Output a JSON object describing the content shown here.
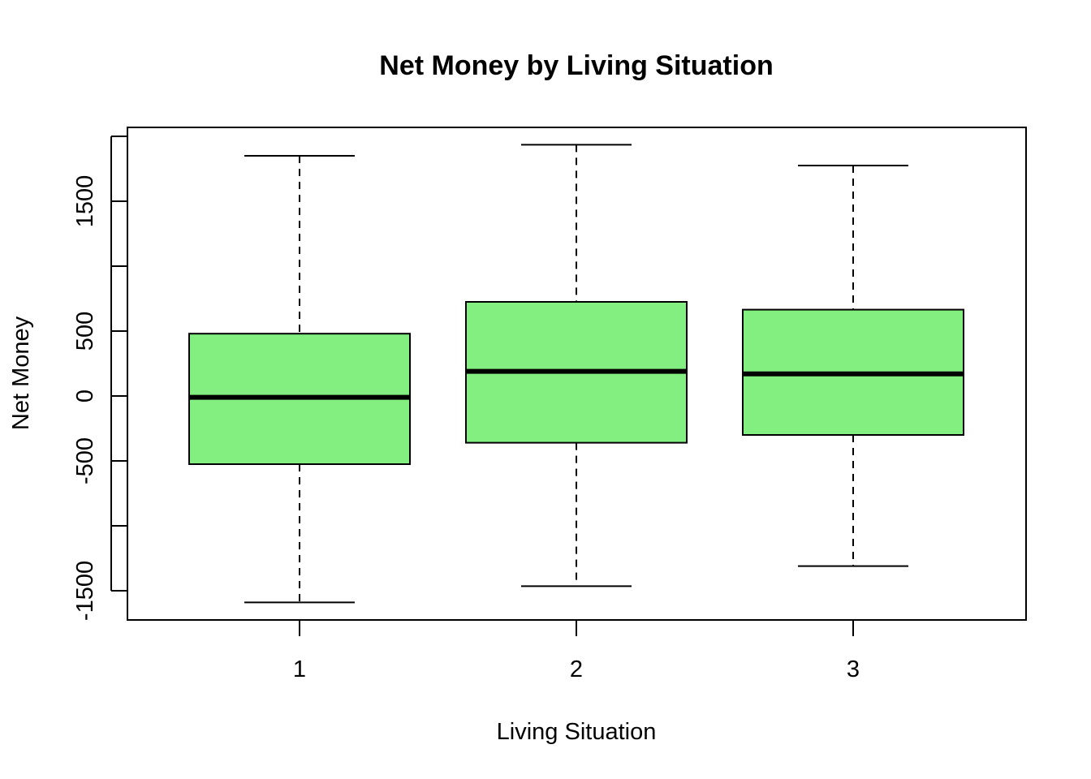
{
  "chart_data": {
    "type": "boxplot",
    "title": "Net Money by Living Situation",
    "xlabel": "Living Situation",
    "ylabel": "Net Money",
    "categories": [
      "1",
      "2",
      "3"
    ],
    "boxes": [
      {
        "category": "1",
        "whisker_low": -1590,
        "q1": -525,
        "median": -10,
        "q3": 480,
        "whisker_high": 1850
      },
      {
        "category": "2",
        "whisker_low": -1465,
        "q1": -360,
        "median": 190,
        "q3": 725,
        "whisker_high": 1935
      },
      {
        "category": "3",
        "whisker_low": -1310,
        "q1": -300,
        "median": 170,
        "q3": 665,
        "whisker_high": 1775
      }
    ],
    "yticks": [
      -1500,
      -1000,
      -500,
      0,
      500,
      1000,
      1500,
      2000
    ],
    "ytick_labels": [
      "-1500",
      "",
      "-500",
      "0",
      "500",
      "",
      "1500",
      ""
    ],
    "ylim": [
      -1720,
      2070
    ],
    "grid": false,
    "legend": "none",
    "box_color": "#83EF80",
    "median_color": "#000000"
  }
}
